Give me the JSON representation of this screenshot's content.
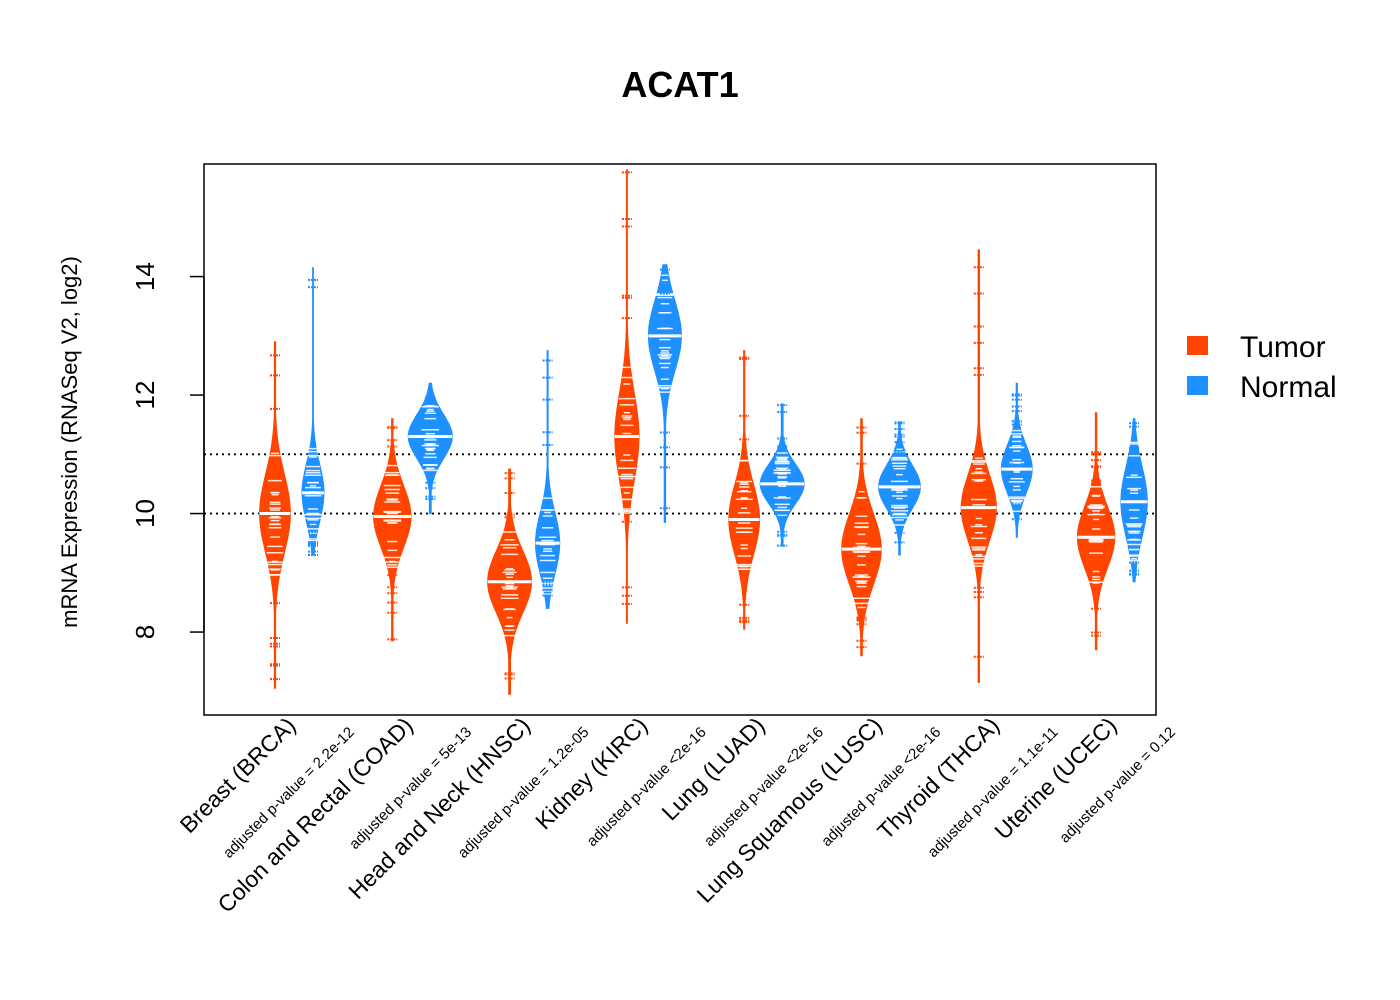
{
  "chart_data": {
    "type": "violin",
    "title": "ACAT1",
    "ylabel": "mRNA Expression (RNASeq V2, log2)",
    "xlabel": "",
    "ylim": [
      6.6,
      15.9
    ],
    "yticks": [
      "8",
      "10",
      "12",
      "14"
    ],
    "ytick_values": [
      8,
      10,
      12,
      14
    ],
    "reference_lines": [
      10,
      11
    ],
    "legend": [
      {
        "name": "Tumor",
        "color": "#ff4500"
      },
      {
        "name": "Normal",
        "color": "#1e90ff"
      }
    ],
    "groups": [
      {
        "label": "Breast (BRCA)",
        "pvalue": "adjusted p-value = 2.2e-12",
        "tumor": {
          "min": 7.05,
          "max": 12.9,
          "median": 10.0,
          "q1": 9.5,
          "q3": 10.4,
          "width": 0.7
        },
        "normal": {
          "min": 9.3,
          "max": 14.15,
          "median": 10.35,
          "q1": 10.05,
          "q3": 10.7,
          "width": 0.5
        }
      },
      {
        "label": "Colon and Rectal (COAD)",
        "pvalue": "adjusted p-value = 5e-13",
        "tumor": {
          "min": 7.85,
          "max": 11.6,
          "median": 9.95,
          "q1": 9.6,
          "q3": 10.3,
          "width": 0.85
        },
        "normal": {
          "min": 10.0,
          "max": 12.2,
          "median": 11.3,
          "q1": 11.05,
          "q3": 11.55,
          "width": 1.0
        }
      },
      {
        "label": "Head and Neck (HNSC)",
        "pvalue": "adjusted p-value = 1.2e-05",
        "tumor": {
          "min": 6.95,
          "max": 10.75,
          "median": 8.85,
          "q1": 8.5,
          "q3": 9.2,
          "width": 1.0
        },
        "normal": {
          "min": 8.4,
          "max": 12.75,
          "median": 9.5,
          "q1": 9.2,
          "q3": 9.9,
          "width": 0.55
        }
      },
      {
        "label": "Kidney (KIRC)",
        "pvalue": "adjusted p-value <2e-16",
        "tumor": {
          "min": 8.15,
          "max": 15.8,
          "median": 11.3,
          "q1": 10.8,
          "q3": 11.8,
          "width": 0.55
        },
        "normal": {
          "min": 9.85,
          "max": 14.2,
          "median": 13.0,
          "q1": 12.6,
          "q3": 13.4,
          "width": 0.75
        }
      },
      {
        "label": "Lung (LUAD)",
        "pvalue": "adjusted p-value <2e-16",
        "tumor": {
          "min": 8.05,
          "max": 12.75,
          "median": 9.9,
          "q1": 9.5,
          "q3": 10.3,
          "width": 0.7
        },
        "normal": {
          "min": 9.45,
          "max": 11.85,
          "median": 10.5,
          "q1": 10.3,
          "q3": 10.75,
          "width": 1.0
        }
      },
      {
        "label": "Lung Squamous (LUSC)",
        "pvalue": "adjusted p-value <2e-16",
        "tumor": {
          "min": 7.6,
          "max": 11.6,
          "median": 9.4,
          "q1": 9.0,
          "q3": 9.8,
          "width": 0.9
        },
        "normal": {
          "min": 9.3,
          "max": 11.55,
          "median": 10.45,
          "q1": 10.2,
          "q3": 10.7,
          "width": 0.95
        }
      },
      {
        "label": "Thyroid (THCA)",
        "pvalue": "adjusted p-value = 1.1e-11",
        "tumor": {
          "min": 7.15,
          "max": 14.45,
          "median": 10.1,
          "q1": 9.7,
          "q3": 10.45,
          "width": 0.8
        },
        "normal": {
          "min": 9.6,
          "max": 12.2,
          "median": 10.75,
          "q1": 10.45,
          "q3": 11.0,
          "width": 0.7
        }
      },
      {
        "label": "Uterine (UCEC)",
        "pvalue": "adjusted p-value = 0.12",
        "tumor": {
          "min": 7.7,
          "max": 11.7,
          "median": 9.6,
          "q1": 9.25,
          "q3": 9.95,
          "width": 0.85
        },
        "normal": {
          "min": 8.85,
          "max": 11.6,
          "median": 10.2,
          "q1": 9.8,
          "q3": 10.6,
          "width": 0.6
        }
      }
    ]
  }
}
